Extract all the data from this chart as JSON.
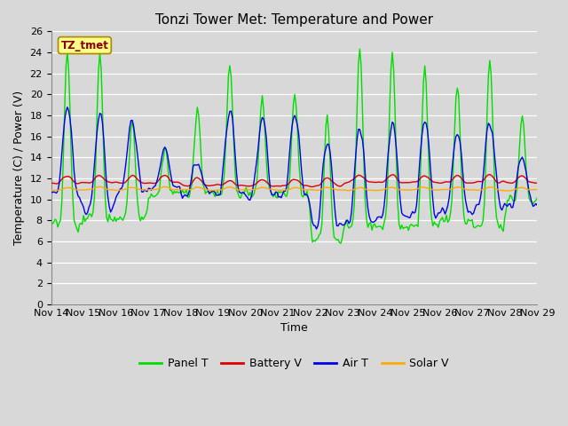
{
  "title": "Tonzi Tower Met: Temperature and Power",
  "xlabel": "Time",
  "ylabel": "Temperature (C) / Power (V)",
  "ylim": [
    0,
    26
  ],
  "yticks": [
    0,
    2,
    4,
    6,
    8,
    10,
    12,
    14,
    16,
    18,
    20,
    22,
    24,
    26
  ],
  "xtick_labels": [
    "Nov 14",
    "Nov 15",
    "Nov 16",
    "Nov 17",
    "Nov 18",
    "Nov 19",
    "Nov 20",
    "Nov 21",
    "Nov 22",
    "Nov 23",
    "Nov 24",
    "Nov 25",
    "Nov 26",
    "Nov 27",
    "Nov 28",
    "Nov 29"
  ],
  "legend_entries": [
    "Panel T",
    "Battery V",
    "Air T",
    "Solar V"
  ],
  "line_colors": [
    "#00dd00",
    "#dd0000",
    "#0000ee",
    "#ffaa00"
  ],
  "annotation_text": "TZ_tmet",
  "annotation_color": "#880000",
  "annotation_bg": "#ffff88",
  "background_color": "#d8d8d8",
  "plot_bg": "#d8d8d8",
  "grid_color": "#ffffff",
  "title_fontsize": 11,
  "axis_fontsize": 9,
  "tick_fontsize": 8
}
